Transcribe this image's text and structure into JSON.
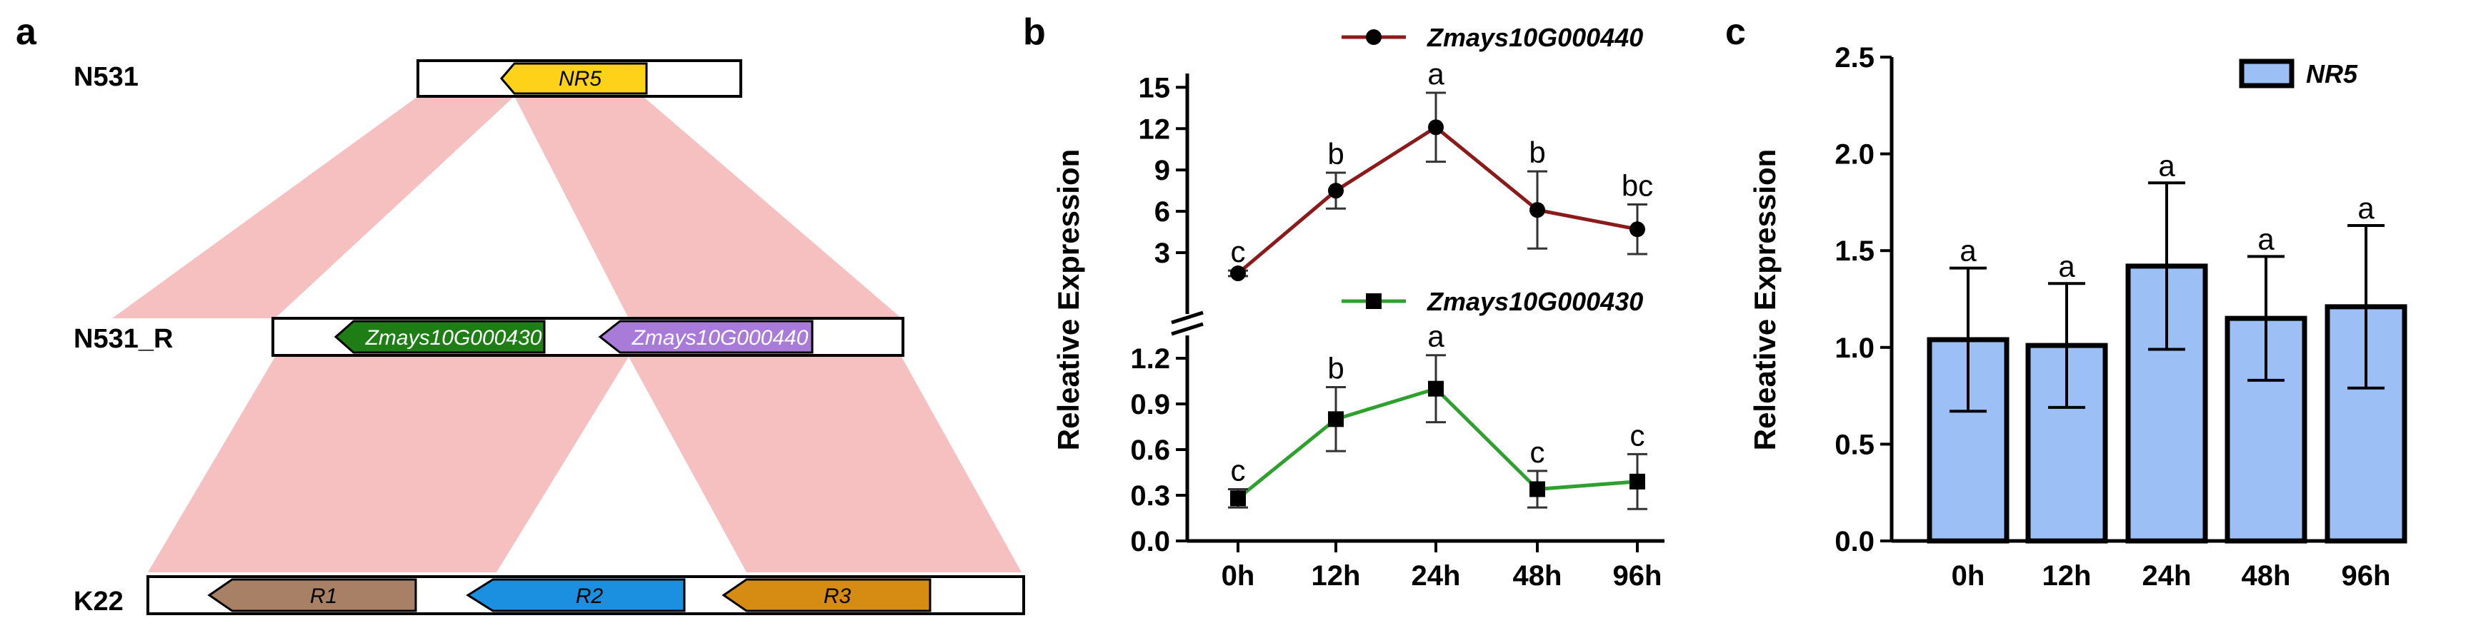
{
  "panel_labels": {
    "a": "a",
    "b": "b",
    "c": "c"
  },
  "synteny": {
    "tracks": [
      {
        "name": "N531",
        "genes": [
          {
            "label": "NR5",
            "color": "#ffd21a",
            "text_color": "#000000"
          }
        ]
      },
      {
        "name": "N531_R",
        "genes": [
          {
            "label": "Zmays10G000430",
            "color": "#1e7d14",
            "text_color": "#ffffff"
          },
          {
            "label": "Zmays10G000440",
            "color": "#a97bd9",
            "text_color": "#ffffff"
          }
        ]
      },
      {
        "name": "K22",
        "genes": [
          {
            "label": "R1",
            "color": "#a88066",
            "text_color": "#000000"
          },
          {
            "label": "R2",
            "color": "#1b8fe0",
            "text_color": "#000000"
          },
          {
            "label": "R3",
            "color": "#d68c12",
            "text_color": "#000000"
          }
        ]
      }
    ],
    "link_color": "#f4b9b8"
  },
  "chart_data": [
    {
      "type": "line",
      "panel": "b",
      "categories": [
        "0h",
        "12h",
        "24h",
        "48h",
        "96h"
      ],
      "ylabel": "Releative Expression",
      "broken_axis": true,
      "upper_axis": {
        "ylim": [
          0,
          16
        ],
        "ticks": [
          "3",
          "6",
          "9",
          "12",
          "15"
        ]
      },
      "lower_axis": {
        "ylim": [
          0,
          1.35
        ],
        "ticks": [
          "0.0",
          "0.3",
          "0.6",
          "0.9",
          "1.2"
        ]
      },
      "series": [
        {
          "name": "Zmays10G000440",
          "color": "#8b1a1a",
          "marker": "circle",
          "axis": "upper",
          "values": [
            1.5,
            7.5,
            12.1,
            6.1,
            4.7
          ],
          "errors": [
            0.2,
            1.3,
            2.5,
            2.8,
            1.8
          ],
          "letters": [
            "c",
            "b",
            "a",
            "b",
            "bc"
          ]
        },
        {
          "name": "Zmays10G000430",
          "color": "#2ea02e",
          "marker": "square",
          "axis": "lower",
          "values": [
            0.28,
            0.8,
            1.0,
            0.34,
            0.39
          ],
          "errors": [
            0.06,
            0.21,
            0.22,
            0.12,
            0.18
          ],
          "letters": [
            "c",
            "b",
            "a",
            "c",
            "c"
          ]
        }
      ]
    },
    {
      "type": "bar",
      "panel": "c",
      "categories": [
        "0h",
        "12h",
        "24h",
        "48h",
        "96h"
      ],
      "ylabel": "Releative Expression",
      "ylim": [
        0,
        2.5
      ],
      "yticks": [
        "0.0",
        "0.5",
        "1.0",
        "1.5",
        "2.0",
        "2.5"
      ],
      "series": [
        {
          "name": "NR5",
          "color": "#9cc0f5",
          "values": [
            1.04,
            1.01,
            1.42,
            1.15,
            1.21
          ],
          "errors": [
            0.37,
            0.32,
            0.43,
            0.32,
            0.42
          ],
          "letters": [
            "a",
            "a",
            "a",
            "a",
            "a"
          ]
        }
      ]
    }
  ]
}
